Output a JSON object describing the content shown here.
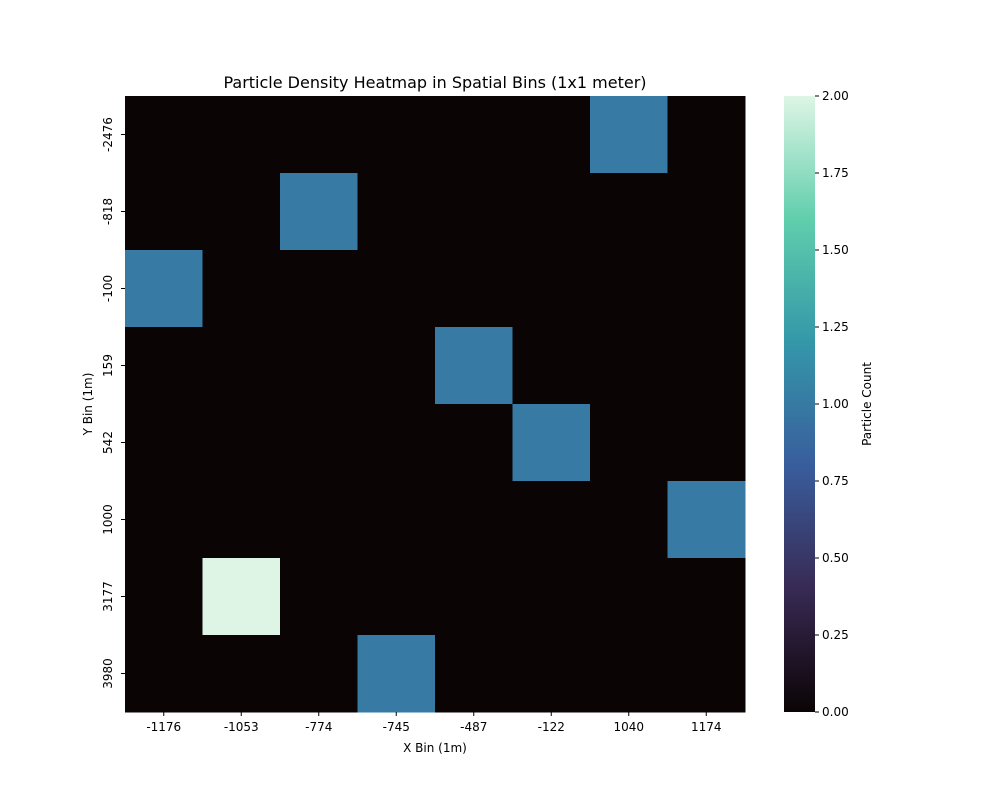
{
  "chart_data": {
    "type": "heatmap",
    "title": "Particle Density Heatmap in Spatial Bins (1x1 meter)",
    "xlabel": "X Bin (1m)",
    "ylabel": "Y Bin (1m)",
    "x_categories": [
      "-1176",
      "-1053",
      "-774",
      "-745",
      "-487",
      "-122",
      "1040",
      "1174"
    ],
    "y_categories": [
      "-2476",
      "-818",
      "-100",
      "159",
      "542",
      "1000",
      "3177",
      "3980"
    ],
    "values": [
      [
        0,
        0,
        0,
        0,
        0,
        0,
        1,
        0
      ],
      [
        0,
        0,
        1,
        0,
        0,
        0,
        0,
        0
      ],
      [
        1,
        0,
        0,
        0,
        0,
        0,
        0,
        0
      ],
      [
        0,
        0,
        0,
        0,
        1,
        0,
        0,
        0
      ],
      [
        0,
        0,
        0,
        0,
        0,
        1,
        0,
        0
      ],
      [
        0,
        0,
        0,
        0,
        0,
        0,
        0,
        1
      ],
      [
        0,
        2,
        0,
        0,
        0,
        0,
        0,
        0
      ],
      [
        0,
        0,
        0,
        1,
        0,
        0,
        0,
        0
      ]
    ],
    "colorbar": {
      "label": "Particle Count",
      "range": [
        0,
        2
      ],
      "ticks": [
        "0.00",
        "0.25",
        "0.50",
        "0.75",
        "1.00",
        "1.25",
        "1.50",
        "1.75",
        "2.00"
      ],
      "colormap": "mako",
      "stops": [
        "#0b0405",
        "#382a54",
        "#395d9c",
        "#3497a9",
        "#60ceac",
        "#def5e5"
      ]
    },
    "grid": false,
    "legend": "none"
  }
}
